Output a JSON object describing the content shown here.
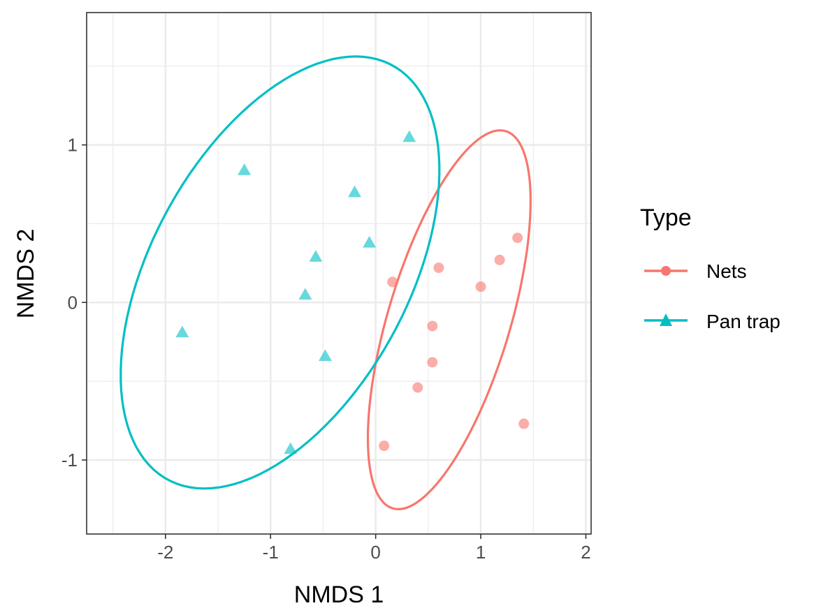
{
  "chart_data": {
    "type": "scatter",
    "xlabel": "NMDS 1",
    "ylabel": "NMDS 2",
    "xlim": [
      -2.75,
      2.05
    ],
    "ylim": [
      -1.47,
      1.84
    ],
    "x_ticks": [
      -2,
      -1,
      0,
      1,
      2
    ],
    "y_ticks": [
      -1,
      0,
      1
    ],
    "x_tick_labels": [
      "-2",
      "-1",
      "0",
      "1",
      "2"
    ],
    "y_tick_labels": [
      "-1",
      "0",
      "1"
    ],
    "grid": true,
    "legend": {
      "title": "Type",
      "position": "right",
      "entries": [
        "Nets",
        "Pan trap"
      ]
    },
    "series": [
      {
        "name": "Nets",
        "marker": "circle",
        "color": "#F8766D",
        "points": [
          {
            "x": 0.16,
            "y": 0.13
          },
          {
            "x": 0.6,
            "y": 0.22
          },
          {
            "x": 1.0,
            "y": 0.1
          },
          {
            "x": 1.18,
            "y": 0.27
          },
          {
            "x": 1.35,
            "y": 0.41
          },
          {
            "x": 0.54,
            "y": -0.15
          },
          {
            "x": 0.54,
            "y": -0.38
          },
          {
            "x": 0.4,
            "y": -0.54
          },
          {
            "x": 1.41,
            "y": -0.77
          },
          {
            "x": 0.08,
            "y": -0.91
          }
        ],
        "ellipse": {
          "cx": 0.7,
          "cy": -0.11,
          "a": 1.32,
          "b": 0.55,
          "angle_deg": 63
        }
      },
      {
        "name": "Pan trap",
        "marker": "triangle",
        "color": "#00BFC4",
        "points": [
          {
            "x": 0.32,
            "y": 1.05
          },
          {
            "x": -1.25,
            "y": 0.84
          },
          {
            "x": -0.2,
            "y": 0.7
          },
          {
            "x": -0.06,
            "y": 0.38
          },
          {
            "x": -0.57,
            "y": 0.29
          },
          {
            "x": -0.67,
            "y": 0.05
          },
          {
            "x": -1.84,
            "y": -0.19
          },
          {
            "x": -0.48,
            "y": -0.34
          },
          {
            "x": -0.81,
            "y": -0.93
          }
        ],
        "ellipse": {
          "cx": -0.91,
          "cy": 0.19,
          "a": 1.76,
          "b": 1.04,
          "angle_deg": 39
        }
      }
    ]
  }
}
